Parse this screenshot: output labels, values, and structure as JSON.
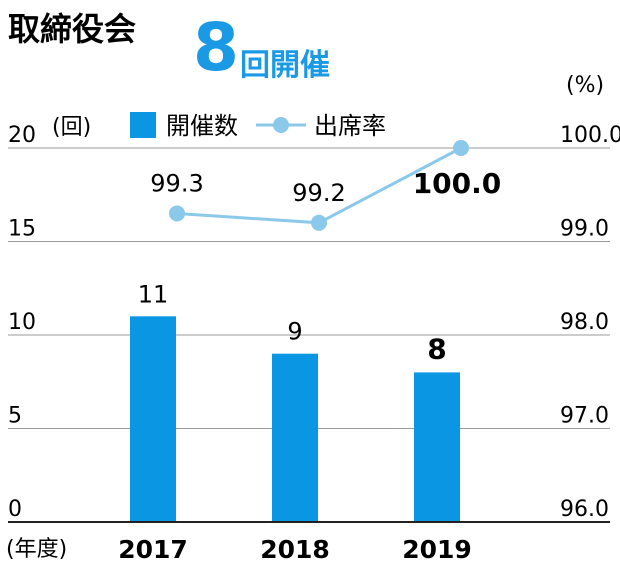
{
  "header": {
    "title": "取締役会",
    "highlight_number": "8",
    "highlight_text": "回開催"
  },
  "colors": {
    "bar": "#0a96e2",
    "line": "#8bc9ea",
    "marker": "#8bc9ea",
    "grid": "#9a9a9a",
    "axis": "#222222",
    "highlight": "#1a9ae4"
  },
  "chart_data": {
    "type": "bar",
    "categories": [
      "2017",
      "2018",
      "2019"
    ],
    "series": [
      {
        "name": "開催数",
        "type": "bar",
        "axis": "left",
        "values": [
          11,
          9,
          8
        ],
        "labels": [
          "11",
          "9",
          "8"
        ]
      },
      {
        "name": "出席率",
        "type": "line",
        "axis": "right",
        "values": [
          99.3,
          99.2,
          100.0
        ],
        "labels": [
          "99.3",
          "99.2",
          "100.0"
        ]
      }
    ],
    "y_left": {
      "range": [
        0,
        20
      ],
      "ticks": [
        "0",
        "5",
        "10",
        "15",
        "20"
      ],
      "unit_label": "(回)"
    },
    "y_right": {
      "range": [
        96.0,
        100.0
      ],
      "ticks": [
        "96.0",
        "97.0",
        "98.0",
        "99.0",
        "100.0"
      ],
      "unit_label": "(%)"
    },
    "x_unit_label": "(年度)",
    "grid": true,
    "legend": "top"
  }
}
